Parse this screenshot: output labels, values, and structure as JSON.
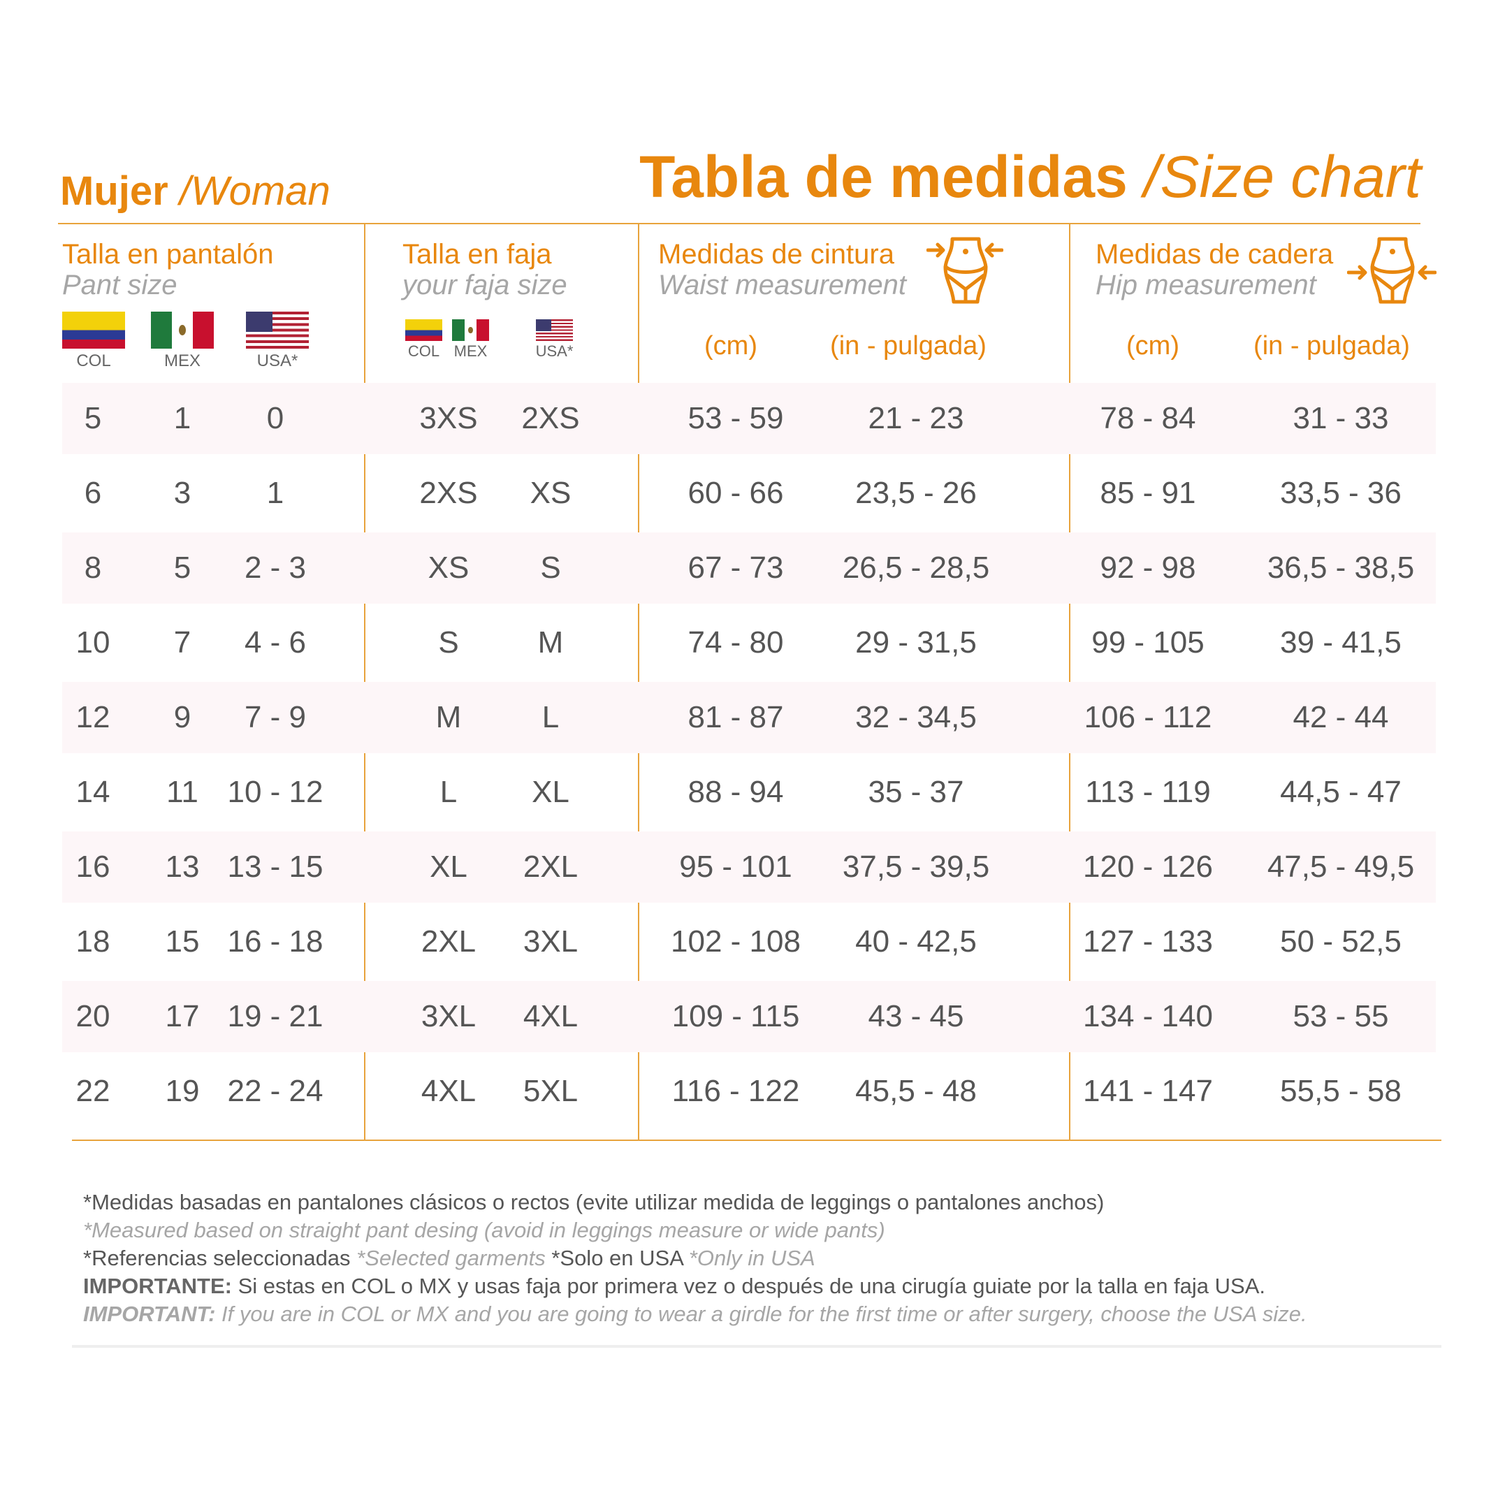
{
  "header": {
    "gender_es": "Mujer",
    "gender_en": "Woman",
    "title_es": "Tabla de medidas",
    "title_en": "Size chart",
    "separator": "/"
  },
  "columns": {
    "pant": {
      "title_es": "Talla en pantalón",
      "title_en": "Pant size",
      "flags": [
        "COL",
        "MEX",
        "USA*"
      ]
    },
    "faja": {
      "title_es": "Talla en faja",
      "title_en": "your faja size",
      "flags": [
        "COL",
        "MEX",
        "USA*"
      ]
    },
    "waist": {
      "title_es": "Medidas de cintura",
      "title_en": "Waist measurement",
      "unit_cm": "(cm)",
      "unit_in": "(in - pulgada)",
      "icon": "waist-measure-icon"
    },
    "hip": {
      "title_es": "Medidas de cadera",
      "title_en": "Hip measurement",
      "unit_cm": "(cm)",
      "unit_in": "(in - pulgada)",
      "icon": "hip-measure-icon"
    }
  },
  "colors": {
    "accent": "#e8870e",
    "row_shade": "#fdf6f8",
    "muted": "#a6a6a6"
  },
  "rows": [
    [
      "5",
      "1",
      "0",
      "3XS",
      "2XS",
      "53 - 59",
      "21 - 23",
      "78 - 84",
      "31 - 33"
    ],
    [
      "6",
      "3",
      "1",
      "2XS",
      "XS",
      "60 - 66",
      "23,5 - 26",
      "85 - 91",
      "33,5 - 36"
    ],
    [
      "8",
      "5",
      "2 - 3",
      "XS",
      "S",
      "67 - 73",
      "26,5 - 28,5",
      "92 - 98",
      "36,5 - 38,5"
    ],
    [
      "10",
      "7",
      "4 - 6",
      "S",
      "M",
      "74 - 80",
      "29 - 31,5",
      "99 - 105",
      "39 - 41,5"
    ],
    [
      "12",
      "9",
      "7 - 9",
      "M",
      "L",
      "81 - 87",
      "32 - 34,5",
      "106 - 112",
      "42 - 44"
    ],
    [
      "14",
      "11",
      "10 - 12",
      "L",
      "XL",
      "88 - 94",
      "35 - 37",
      "113 - 119",
      "44,5 - 47"
    ],
    [
      "16",
      "13",
      "13 - 15",
      "XL",
      "2XL",
      "95 - 101",
      "37,5 - 39,5",
      "120 - 126",
      "47,5 - 49,5"
    ],
    [
      "18",
      "15",
      "16 - 18",
      "2XL",
      "3XL",
      "102 - 108",
      "40 - 42,5",
      "127 - 133",
      "50 - 52,5"
    ],
    [
      "20",
      "17",
      "19 - 21",
      "3XL",
      "4XL",
      "109 - 115",
      "43 - 45",
      "134 - 140",
      "53 - 55"
    ],
    [
      "22",
      "19",
      "22 - 24",
      "4XL",
      "5XL",
      "116 - 122",
      "45,5 - 48",
      "141 - 147",
      "55,5 - 58"
    ]
  ],
  "footer": {
    "line1": "*Medidas basadas en pantalones clásicos o rectos (evite utilizar medida de leggings o pantalones anchos)",
    "line2": "*Measured based on straight pant desing (avoid in leggings measure or wide pants)",
    "line3a": "*Referencias seleccionadas ",
    "line3b": "*Selected garments ",
    "line3c": "*Solo en USA ",
    "line3d": "*Only in USA",
    "line4_label": "IMPORTANTE:",
    "line4": " Si estas en COL o MX y usas faja por primera vez o después de una cirugía guiate por la talla en faja USA.",
    "line5_label": "IMPORTANT:",
    "line5": " If you are in COL or MX and you are going to wear a girdle for the first time or after surgery, choose the USA size."
  }
}
